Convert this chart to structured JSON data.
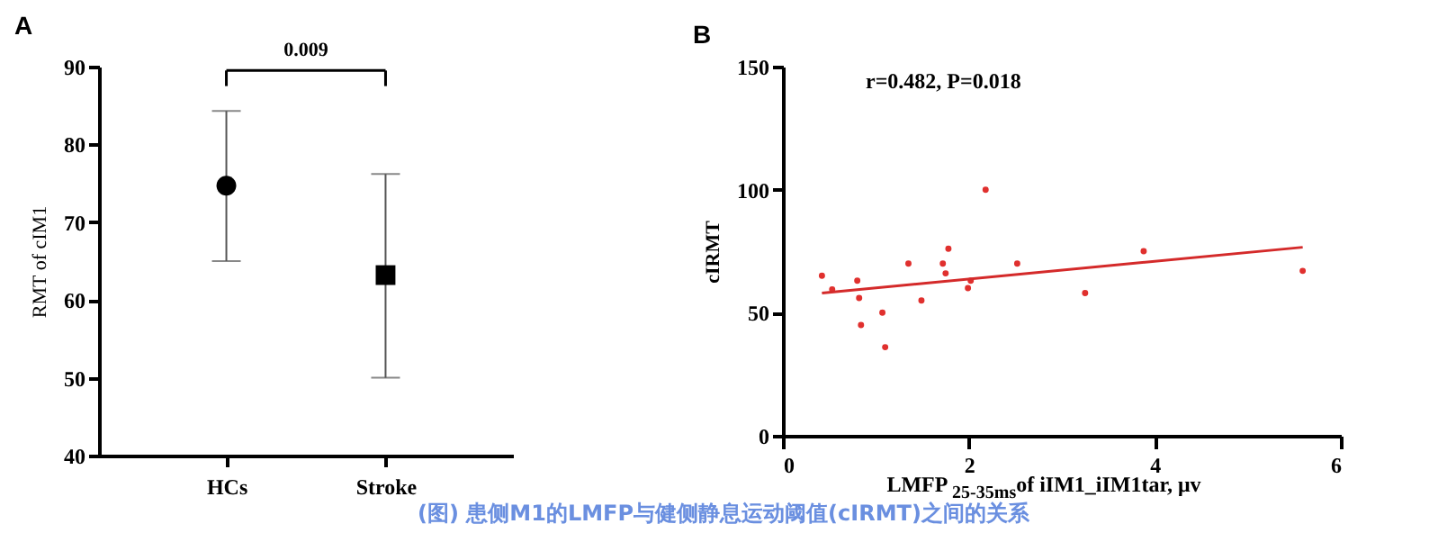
{
  "chart_data": [
    {
      "type": "scatter",
      "title": "A",
      "ylabel": "RMT of cIM1",
      "categories": [
        "HCs",
        "Stroke"
      ],
      "ylim": [
        40,
        90
      ],
      "yticks": [
        40,
        50,
        60,
        70,
        80,
        90
      ],
      "series": [
        {
          "values": [
            74.7,
            null
          ],
          "errors": [
            [
              65,
              84.3
            ],
            null
          ],
          "marker": "circle",
          "color": "#000000"
        },
        {
          "values": [
            null,
            63.2
          ],
          "errors": [
            null,
            [
              50,
              76.2
            ]
          ],
          "marker": "square",
          "color": "#000000"
        }
      ],
      "annotations": [
        "0.009"
      ]
    },
    {
      "type": "scatter",
      "title": "B",
      "xlabel": "LMFP $_{25-35ms}$of iIM1_iIM1tar, μv",
      "ylabel": "cIRMT",
      "xlim": [
        0,
        6
      ],
      "xticks": [
        0,
        2,
        4,
        6
      ],
      "ylim": [
        0,
        150
      ],
      "yticks": [
        0,
        50,
        100,
        150
      ],
      "series": [
        {
          "type": "scatter",
          "color": "#e0302e",
          "x": [
            0.42,
            0.53,
            0.8,
            0.82,
            0.84,
            1.07,
            1.1,
            1.35,
            1.49,
            1.72,
            1.75,
            1.78,
            1.99,
            2.02,
            2.18,
            2.52,
            3.25,
            3.88,
            5.59
          ],
          "values": [
            65,
            59.5,
            63,
            56,
            45,
            50,
            36,
            70,
            55,
            70,
            66,
            76,
            60,
            63,
            100,
            70,
            58,
            75,
            67
          ]
        },
        {
          "type": "line",
          "color": "#d42a2a",
          "x": [
            0.42,
            5.59
          ],
          "values": [
            58,
            76.6
          ]
        }
      ],
      "annotations": [
        "r=0.482, P=0.018",
        "(图) 患侧M1的LMFP与健侧静息运动阈值(cIRMT)之间的关系"
      ]
    }
  ]
}
